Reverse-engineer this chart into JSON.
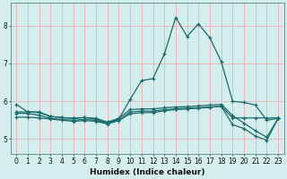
{
  "xlabel": "Humidex (Indice chaleur)",
  "bg_color": "#d4eeee",
  "grid_color": "#e8b8bc",
  "line_color": "#1a6b6b",
  "ylim": [
    4.6,
    8.6
  ],
  "xlim": [
    -0.5,
    23.5
  ],
  "yticks": [
    5,
    6,
    7,
    8
  ],
  "xticks": [
    0,
    1,
    2,
    3,
    4,
    5,
    6,
    7,
    8,
    9,
    10,
    11,
    12,
    13,
    14,
    15,
    16,
    17,
    18,
    19,
    20,
    21,
    22,
    23
  ],
  "line1": [
    5.92,
    5.72,
    5.72,
    5.6,
    5.57,
    5.55,
    5.57,
    5.53,
    5.43,
    5.53,
    6.05,
    6.55,
    6.6,
    7.25,
    8.22,
    7.72,
    8.05,
    7.68,
    7.05,
    6.0,
    5.97,
    5.9,
    5.5,
    5.55
  ],
  "line2": [
    5.72,
    5.72,
    5.7,
    5.6,
    5.57,
    5.55,
    5.57,
    5.55,
    5.45,
    5.55,
    5.78,
    5.8,
    5.8,
    5.83,
    5.85,
    5.86,
    5.88,
    5.9,
    5.92,
    5.62,
    5.42,
    5.22,
    5.05,
    5.55
  ],
  "line3": [
    5.68,
    5.68,
    5.63,
    5.55,
    5.52,
    5.5,
    5.52,
    5.5,
    5.42,
    5.5,
    5.72,
    5.74,
    5.74,
    5.78,
    5.8,
    5.82,
    5.83,
    5.85,
    5.87,
    5.38,
    5.28,
    5.08,
    4.97,
    5.55
  ],
  "line4": [
    5.58,
    5.58,
    5.56,
    5.53,
    5.5,
    5.47,
    5.49,
    5.47,
    5.4,
    5.49,
    5.67,
    5.7,
    5.7,
    5.75,
    5.78,
    5.8,
    5.82,
    5.84,
    5.87,
    5.56,
    5.56,
    5.56,
    5.56,
    5.56
  ]
}
